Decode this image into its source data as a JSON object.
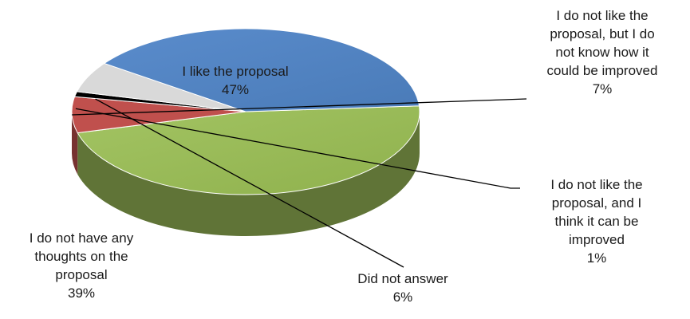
{
  "chart_data": {
    "type": "pie",
    "style": "3d",
    "title": "",
    "slices": [
      {
        "label": "I like the proposal",
        "value": 47,
        "value_text": "47%",
        "color": "#9BBB59"
      },
      {
        "label": "I do not like the proposal, but I do not know how it could be improved",
        "value": 7,
        "value_text": "7%",
        "color": "#C0504D"
      },
      {
        "label": "I do not like the proposal, and I think it can be improved",
        "value": 1,
        "value_text": "1%",
        "color": "#000000"
      },
      {
        "label": "Did not answer",
        "value": 6,
        "value_text": "6%",
        "color": "#D9D9D9"
      },
      {
        "label": "I do not have any thoughts on the proposal",
        "value": 39,
        "value_text": "39%",
        "color": "#4F81BD"
      }
    ],
    "labels": {
      "like": [
        "I like the proposal"
      ],
      "dislike_no_idea": [
        "I do not like the",
        "proposal, but I do",
        "not know how it",
        "could be improved"
      ],
      "dislike_improve": [
        "I do not like the",
        "proposal, and I",
        "think it can be",
        "improved"
      ],
      "no_answer": [
        "Did not answer"
      ],
      "no_thoughts": [
        "I do not have any",
        "thoughts on the",
        "proposal"
      ]
    }
  }
}
